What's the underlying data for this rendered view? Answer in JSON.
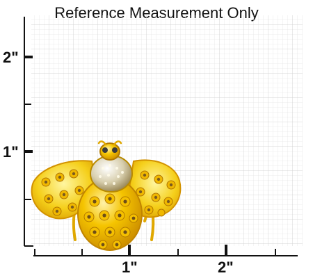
{
  "title": "Reference Measurement Only",
  "y_axis_labels": [
    "2\"",
    "1\""
  ],
  "x_axis_labels": [
    "1\"",
    "2\""
  ],
  "product": {
    "name": "bee-brooch",
    "colors": {
      "gold": "#f2b600",
      "enamel": "#f6c61a",
      "stone": "#8a6a2a",
      "crystal": "#e9e2c6"
    }
  }
}
